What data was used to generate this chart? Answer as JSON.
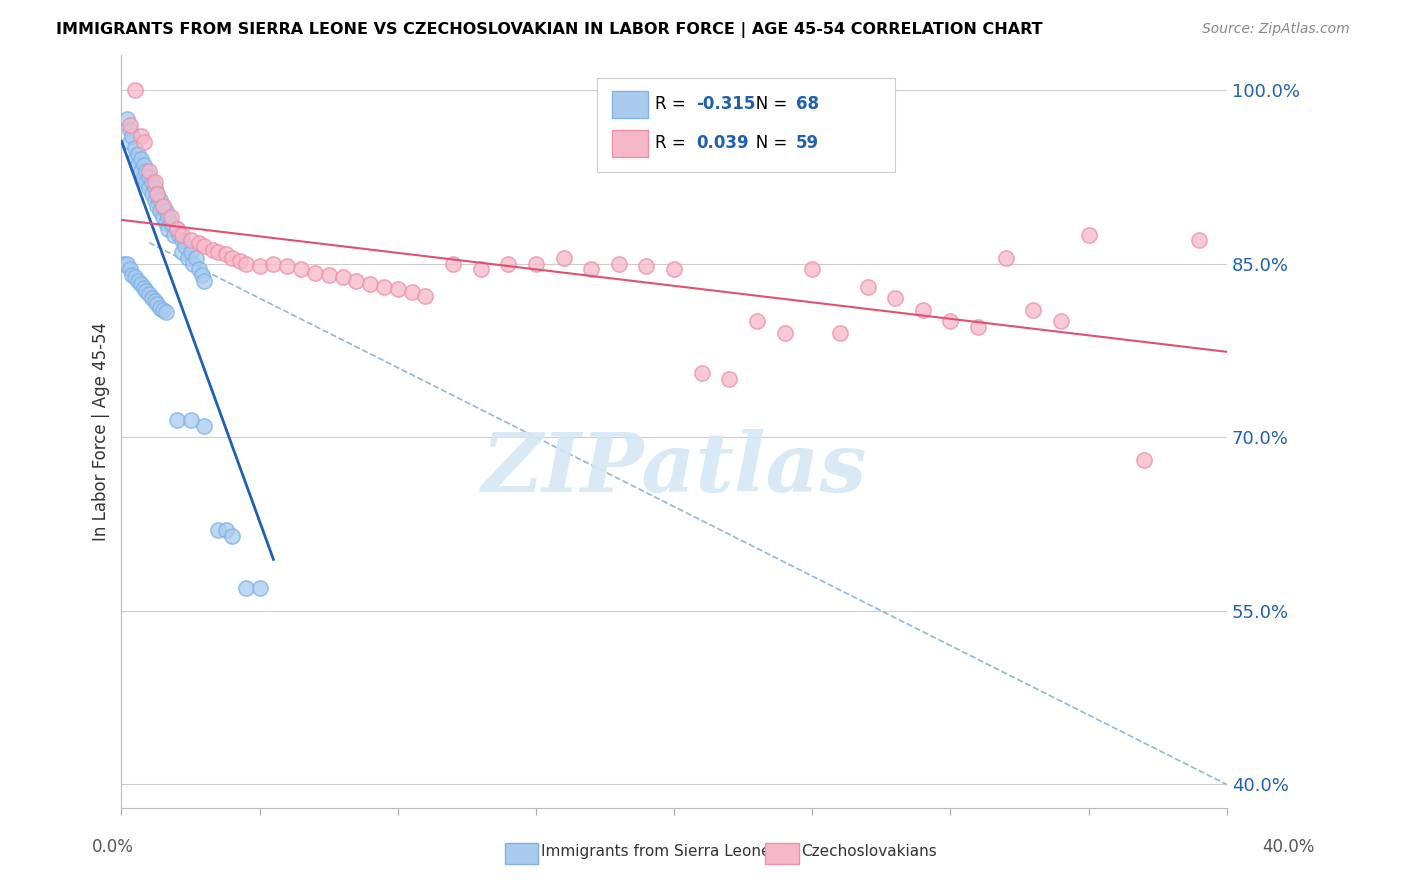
{
  "title": "IMMIGRANTS FROM SIERRA LEONE VS CZECHOSLOVAKIAN IN LABOR FORCE | AGE 45-54 CORRELATION CHART",
  "source": "Source: ZipAtlas.com",
  "ylabel": "In Labor Force | Age 45-54",
  "right_ytick_vals": [
    1.0,
    0.85,
    0.7,
    0.55,
    0.4
  ],
  "right_ytick_labels": [
    "100.0%",
    "85.0%",
    "70.0%",
    "55.0%",
    "40.0%"
  ],
  "xlim": [
    0.0,
    0.4
  ],
  "ylim": [
    0.38,
    1.03
  ],
  "legend_blue_R": "-0.315",
  "legend_blue_N": "68",
  "legend_pink_R": "0.039",
  "legend_pink_N": "59",
  "blue_fill": "#AACBEE",
  "blue_edge": "#7EB3E8",
  "pink_fill": "#F5B8C8",
  "pink_edge": "#F090A8",
  "blue_trend_color": "#2060B0",
  "pink_trend_color": "#E05070",
  "dashed_trend_color": "#90B8D8",
  "watermark_color": "#D5E8F5",
  "blue_x": [
    0.002,
    0.003,
    0.003,
    0.004,
    0.005,
    0.005,
    0.006,
    0.006,
    0.007,
    0.007,
    0.008,
    0.008,
    0.009,
    0.009,
    0.01,
    0.01,
    0.011,
    0.011,
    0.012,
    0.012,
    0.013,
    0.013,
    0.014,
    0.014,
    0.015,
    0.015,
    0.016,
    0.016,
    0.017,
    0.017,
    0.018,
    0.019,
    0.02,
    0.021,
    0.022,
    0.022,
    0.023,
    0.024,
    0.025,
    0.026,
    0.027,
    0.028,
    0.029,
    0.03,
    0.001,
    0.002,
    0.003,
    0.004,
    0.005,
    0.006,
    0.007,
    0.008,
    0.009,
    0.01,
    0.011,
    0.012,
    0.013,
    0.014,
    0.015,
    0.016,
    0.02,
    0.025,
    0.03,
    0.035,
    0.038,
    0.04,
    0.045,
    0.05
  ],
  "blue_y": [
    0.975,
    0.965,
    0.955,
    0.96,
    0.95,
    0.94,
    0.945,
    0.935,
    0.94,
    0.93,
    0.935,
    0.925,
    0.93,
    0.92,
    0.925,
    0.915,
    0.92,
    0.91,
    0.915,
    0.905,
    0.91,
    0.9,
    0.905,
    0.895,
    0.9,
    0.89,
    0.895,
    0.885,
    0.89,
    0.88,
    0.885,
    0.875,
    0.88,
    0.875,
    0.87,
    0.86,
    0.865,
    0.855,
    0.86,
    0.85,
    0.855,
    0.845,
    0.84,
    0.835,
    0.85,
    0.85,
    0.845,
    0.84,
    0.838,
    0.835,
    0.832,
    0.829,
    0.826,
    0.824,
    0.82,
    0.818,
    0.815,
    0.812,
    0.81,
    0.808,
    0.715,
    0.715,
    0.71,
    0.62,
    0.62,
    0.615,
    0.57,
    0.57
  ],
  "pink_x": [
    0.003,
    0.005,
    0.007,
    0.008,
    0.01,
    0.012,
    0.013,
    0.015,
    0.018,
    0.02,
    0.022,
    0.025,
    0.028,
    0.03,
    0.033,
    0.035,
    0.038,
    0.04,
    0.043,
    0.045,
    0.05,
    0.055,
    0.06,
    0.065,
    0.07,
    0.075,
    0.08,
    0.085,
    0.09,
    0.095,
    0.1,
    0.105,
    0.11,
    0.12,
    0.13,
    0.14,
    0.15,
    0.16,
    0.17,
    0.18,
    0.19,
    0.2,
    0.21,
    0.22,
    0.23,
    0.24,
    0.25,
    0.26,
    0.27,
    0.28,
    0.29,
    0.3,
    0.31,
    0.32,
    0.33,
    0.34,
    0.35,
    0.37,
    0.39
  ],
  "pink_y": [
    0.97,
    1.0,
    0.96,
    0.955,
    0.93,
    0.92,
    0.91,
    0.9,
    0.89,
    0.88,
    0.875,
    0.87,
    0.868,
    0.865,
    0.862,
    0.86,
    0.858,
    0.855,
    0.852,
    0.85,
    0.848,
    0.85,
    0.848,
    0.845,
    0.842,
    0.84,
    0.838,
    0.835,
    0.832,
    0.83,
    0.828,
    0.825,
    0.822,
    0.85,
    0.845,
    0.85,
    0.85,
    0.855,
    0.845,
    0.85,
    0.848,
    0.845,
    0.755,
    0.75,
    0.8,
    0.79,
    0.845,
    0.79,
    0.83,
    0.82,
    0.81,
    0.8,
    0.795,
    0.855,
    0.81,
    0.8,
    0.875,
    0.68,
    0.87
  ]
}
